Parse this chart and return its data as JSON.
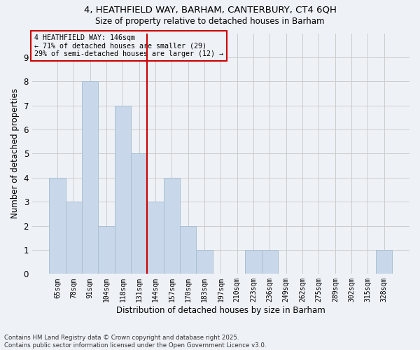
{
  "title1": "4, HEATHFIELD WAY, BARHAM, CANTERBURY, CT4 6QH",
  "title2": "Size of property relative to detached houses in Barham",
  "xlabel": "Distribution of detached houses by size in Barham",
  "ylabel": "Number of detached properties",
  "categories": [
    "65sqm",
    "78sqm",
    "91sqm",
    "104sqm",
    "118sqm",
    "131sqm",
    "144sqm",
    "157sqm",
    "170sqm",
    "183sqm",
    "197sqm",
    "210sqm",
    "223sqm",
    "236sqm",
    "249sqm",
    "262sqm",
    "275sqm",
    "289sqm",
    "302sqm",
    "315sqm",
    "328sqm"
  ],
  "values": [
    4,
    3,
    8,
    2,
    7,
    5,
    3,
    4,
    2,
    1,
    0,
    0,
    1,
    1,
    0,
    0,
    0,
    0,
    0,
    0,
    1
  ],
  "bar_color": "#c8d8ea",
  "bar_edge_color": "#aabfcf",
  "grid_color": "#cccccc",
  "vline_color": "#cc0000",
  "annotation_text": "4 HEATHFIELD WAY: 146sqm\n← 71% of detached houses are smaller (29)\n29% of semi-detached houses are larger (12) →",
  "annotation_box_color": "#cc0000",
  "ylim": [
    0,
    10
  ],
  "yticks": [
    0,
    1,
    2,
    3,
    4,
    5,
    6,
    7,
    8,
    9,
    10
  ],
  "footnote": "Contains HM Land Registry data © Crown copyright and database right 2025.\nContains public sector information licensed under the Open Government Licence v3.0.",
  "bg_color": "#eef2f7"
}
